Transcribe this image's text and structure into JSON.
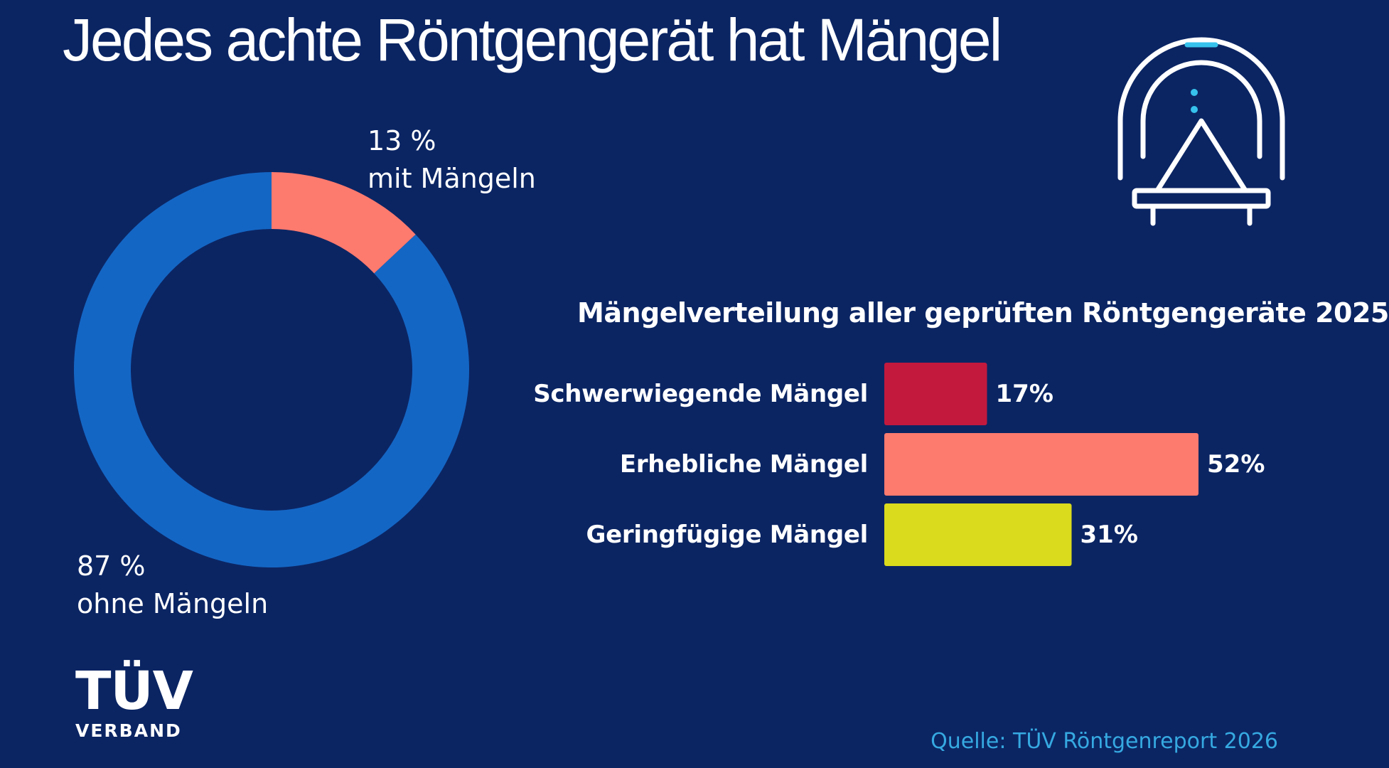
{
  "title": "Jedes achte Röntgengerät hat Mängel",
  "donut": {
    "defect": {
      "percent_text": "13 %",
      "label": "mit Mängeln"
    },
    "ok": {
      "percent_text": "87 %",
      "label": "ohne Mängeln"
    }
  },
  "bars_title": "Mängelverteilung aller geprüften Röntgengeräte 2025",
  "source": "Quelle: TÜV Röntgenreport 2026",
  "logo": {
    "name": "TÜV",
    "sub": "VERBAND"
  },
  "icon": "x-ray-machine-icon",
  "colors": {
    "background": "#0b2563",
    "donut_ok": "#1466c4",
    "donut_defect": "#fd7a6e",
    "bar_severe": "#c2193d",
    "bar_major": "#fd7a6e",
    "bar_minor": "#dadb1c",
    "source_text": "#36a9e1",
    "icon_accent": "#36c2ec"
  },
  "chart_data": [
    {
      "type": "pie",
      "title": "",
      "categories": [
        "mit Mängeln",
        "ohne Mängeln"
      ],
      "values": [
        13,
        87
      ],
      "legend": "none"
    },
    {
      "type": "bar",
      "orientation": "horizontal",
      "title": "Mängelverteilung aller geprüften Röntgengeräte 2025",
      "categories": [
        "Schwerwiegende Mängel",
        "Erhebliche Mängel",
        "Geringfügige Mängel"
      ],
      "values": [
        17,
        52,
        31
      ],
      "value_labels": [
        "17%",
        "52%",
        "31%"
      ],
      "xlabel": "",
      "ylabel": "",
      "grid": false,
      "legend": "none"
    }
  ]
}
